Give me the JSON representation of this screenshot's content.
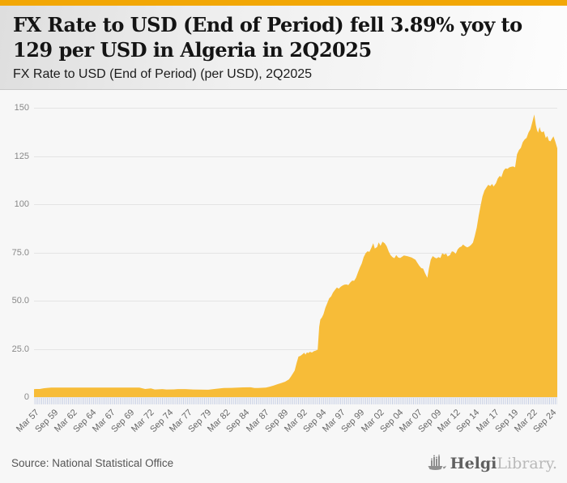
{
  "page": {
    "background": "#f7f7f7",
    "accent_bar_color": "#F2A705"
  },
  "header": {
    "title": "FX Rate to USD (End of Period) fell 3.89% yoy to 129 per USD in Algeria in 2Q2025",
    "subtitle": "FX Rate to USD (End of Period) (per USD), 2Q2025"
  },
  "chart_data": {
    "type": "area",
    "title": "FX Rate to USD (End of Period) (per USD), 2Q2025",
    "xlabel": "",
    "ylabel": "",
    "unit": "per USD",
    "latest_value": 129,
    "latest_period": "2Q2025",
    "yoy_change_pct": -3.89,
    "country": "Algeria",
    "fill_color": "#F7BC38",
    "grid_color": "#e4e4e4",
    "tick_comb_color": "#c7cfe4",
    "axis_text_color": "#777777",
    "legend": "none",
    "grid": "horizontal",
    "x_range": [
      1957.25,
      2025.5
    ],
    "y_range": [
      0,
      150
    ],
    "y_ticks": [
      {
        "v": 0,
        "label": "0"
      },
      {
        "v": 25,
        "label": "25.0"
      },
      {
        "v": 50,
        "label": "50.0"
      },
      {
        "v": 75,
        "label": "75.0"
      },
      {
        "v": 100,
        "label": "100"
      },
      {
        "v": 125,
        "label": "125"
      },
      {
        "v": 150,
        "label": "150"
      }
    ],
    "x_tick_start": 1957.25,
    "x_tick_step": 2.5,
    "x_tick_labels": [
      "Mar 57",
      "Sep 59",
      "Mar 62",
      "Sep 64",
      "Mar 67",
      "Sep 69",
      "Mar 72",
      "Sep 74",
      "Mar 77",
      "Sep 79",
      "Mar 82",
      "Sep 84",
      "Mar 87",
      "Sep 89",
      "Mar 92",
      "Sep 94",
      "Mar 97",
      "Sep 99",
      "Mar 02",
      "Sep 04",
      "Mar 07",
      "Sep 09",
      "Mar 12",
      "Sep 14",
      "Mar 17",
      "Sep 19",
      "Mar 22",
      "Sep 24"
    ],
    "minor_ticks_per_year": 4,
    "series": [
      {
        "name": "FX Rate to USD (End of Period)",
        "points": [
          [
            1957.25,
            4.1
          ],
          [
            1957.5,
            4.2
          ],
          [
            1958.0,
            4.2
          ],
          [
            1958.5,
            4.6
          ],
          [
            1959.0,
            4.8
          ],
          [
            1959.5,
            4.94
          ],
          [
            1961.0,
            4.94
          ],
          [
            1963.0,
            4.94
          ],
          [
            1965.0,
            4.94
          ],
          [
            1967.0,
            4.94
          ],
          [
            1969.0,
            4.94
          ],
          [
            1971.0,
            4.94
          ],
          [
            1971.75,
            4.19
          ],
          [
            1972.5,
            4.48
          ],
          [
            1973.0,
            3.96
          ],
          [
            1974.0,
            4.18
          ],
          [
            1974.5,
            3.95
          ],
          [
            1975.5,
            4.0
          ],
          [
            1976.0,
            4.16
          ],
          [
            1977.0,
            4.15
          ],
          [
            1978.0,
            3.97
          ],
          [
            1979.0,
            3.85
          ],
          [
            1980.0,
            3.84
          ],
          [
            1981.0,
            4.32
          ],
          [
            1982.0,
            4.7
          ],
          [
            1983.0,
            4.79
          ],
          [
            1984.5,
            5.03
          ],
          [
            1985.5,
            5.1
          ],
          [
            1986.0,
            4.7
          ],
          [
            1986.5,
            4.75
          ],
          [
            1987.0,
            4.85
          ],
          [
            1987.5,
            4.93
          ],
          [
            1988.0,
            5.4
          ],
          [
            1988.5,
            6.0
          ],
          [
            1989.0,
            6.7
          ],
          [
            1989.5,
            7.3
          ],
          [
            1990.0,
            8.0
          ],
          [
            1990.5,
            9.2
          ],
          [
            1990.75,
            10.6
          ],
          [
            1991.0,
            12.2
          ],
          [
            1991.25,
            13.8
          ],
          [
            1991.5,
            17.7
          ],
          [
            1991.75,
            21.0
          ],
          [
            1992.0,
            21.4
          ],
          [
            1992.25,
            22.2
          ],
          [
            1992.5,
            23.0
          ],
          [
            1992.65,
            22.0
          ],
          [
            1992.85,
            23.2
          ],
          [
            1993.0,
            22.8
          ],
          [
            1993.25,
            23.5
          ],
          [
            1993.5,
            23.1
          ],
          [
            1993.75,
            23.8
          ],
          [
            1994.0,
            24.1
          ],
          [
            1994.25,
            24.6
          ],
          [
            1994.45,
            36.5
          ],
          [
            1994.6,
            40.2
          ],
          [
            1994.8,
            41.3
          ],
          [
            1995.0,
            42.9
          ],
          [
            1995.25,
            46.3
          ],
          [
            1995.5,
            48.7
          ],
          [
            1995.75,
            51.2
          ],
          [
            1996.0,
            52.2
          ],
          [
            1996.25,
            54.2
          ],
          [
            1996.5,
            55.6
          ],
          [
            1996.75,
            56.8
          ],
          [
            1997.0,
            56.2
          ],
          [
            1997.25,
            57.2
          ],
          [
            1997.5,
            57.9
          ],
          [
            1997.75,
            58.3
          ],
          [
            1998.0,
            58.4
          ],
          [
            1998.25,
            58.1
          ],
          [
            1998.5,
            59.4
          ],
          [
            1998.75,
            60.4
          ],
          [
            1999.0,
            60.3
          ],
          [
            1999.25,
            61.9
          ],
          [
            1999.5,
            64.6
          ],
          [
            1999.75,
            67.2
          ],
          [
            2000.0,
            69.3
          ],
          [
            2000.25,
            72.6
          ],
          [
            2000.5,
            74.6
          ],
          [
            2000.75,
            75.6
          ],
          [
            2001.0,
            75.3
          ],
          [
            2001.25,
            77.4
          ],
          [
            2001.5,
            79.8
          ],
          [
            2001.7,
            77.0
          ],
          [
            2002.0,
            77.8
          ],
          [
            2002.2,
            80.2
          ],
          [
            2002.45,
            78.4
          ],
          [
            2002.7,
            80.6
          ],
          [
            2003.0,
            79.7
          ],
          [
            2003.25,
            78.2
          ],
          [
            2003.5,
            75.6
          ],
          [
            2003.75,
            73.6
          ],
          [
            2004.0,
            72.6
          ],
          [
            2004.25,
            72.0
          ],
          [
            2004.5,
            73.6
          ],
          [
            2004.75,
            72.4
          ],
          [
            2005.0,
            72.1
          ],
          [
            2005.5,
            73.4
          ],
          [
            2006.0,
            73.0
          ],
          [
            2006.5,
            72.4
          ],
          [
            2007.0,
            71.2
          ],
          [
            2007.25,
            69.6
          ],
          [
            2007.5,
            68.1
          ],
          [
            2007.75,
            66.9
          ],
          [
            2008.0,
            66.6
          ],
          [
            2008.25,
            64.3
          ],
          [
            2008.55,
            61.9
          ],
          [
            2008.75,
            66.6
          ],
          [
            2009.0,
            71.2
          ],
          [
            2009.25,
            73.1
          ],
          [
            2009.5,
            72.4
          ],
          [
            2009.75,
            71.9
          ],
          [
            2010.0,
            72.6
          ],
          [
            2010.25,
            72.1
          ],
          [
            2010.5,
            74.6
          ],
          [
            2010.75,
            73.9
          ],
          [
            2011.0,
            74.4
          ],
          [
            2011.2,
            72.9
          ],
          [
            2011.5,
            73.6
          ],
          [
            2011.75,
            75.6
          ],
          [
            2012.0,
            75.3
          ],
          [
            2012.25,
            74.3
          ],
          [
            2012.5,
            76.6
          ],
          [
            2012.75,
            77.6
          ],
          [
            2013.0,
            78.1
          ],
          [
            2013.2,
            79.1
          ],
          [
            2013.5,
            78.2
          ],
          [
            2013.75,
            77.6
          ],
          [
            2014.0,
            78.1
          ],
          [
            2014.25,
            78.9
          ],
          [
            2014.5,
            80.1
          ],
          [
            2014.75,
            83.6
          ],
          [
            2015.0,
            87.9
          ],
          [
            2015.25,
            94.1
          ],
          [
            2015.5,
            99.2
          ],
          [
            2015.75,
            104.1
          ],
          [
            2016.0,
            107.1
          ],
          [
            2016.25,
            108.6
          ],
          [
            2016.5,
            110.1
          ],
          [
            2016.75,
            109.4
          ],
          [
            2017.0,
            110.5
          ],
          [
            2017.2,
            109.2
          ],
          [
            2017.5,
            110.9
          ],
          [
            2017.75,
            113.4
          ],
          [
            2018.0,
            114.7
          ],
          [
            2018.2,
            114.0
          ],
          [
            2018.5,
            117.4
          ],
          [
            2018.75,
            118.6
          ],
          [
            2019.0,
            118.3
          ],
          [
            2019.25,
            119.1
          ],
          [
            2019.5,
            119.4
          ],
          [
            2019.75,
            119.6
          ],
          [
            2020.0,
            119.1
          ],
          [
            2020.25,
            125.9
          ],
          [
            2020.5,
            128.1
          ],
          [
            2020.75,
            129.2
          ],
          [
            2021.0,
            132.2
          ],
          [
            2021.25,
            133.6
          ],
          [
            2021.5,
            134.4
          ],
          [
            2021.75,
            137.2
          ],
          [
            2022.0,
            138.9
          ],
          [
            2022.25,
            142.6
          ],
          [
            2022.5,
            146.5
          ],
          [
            2022.7,
            141.0
          ],
          [
            2022.85,
            138.5
          ],
          [
            2023.0,
            137.1
          ],
          [
            2023.2,
            140.0
          ],
          [
            2023.35,
            138.0
          ],
          [
            2023.5,
            137.3
          ],
          [
            2023.75,
            137.8
          ],
          [
            2024.0,
            134.3
          ],
          [
            2024.2,
            135.4
          ],
          [
            2024.4,
            133.0
          ],
          [
            2024.6,
            132.6
          ],
          [
            2024.8,
            133.9
          ],
          [
            2025.0,
            135.2
          ],
          [
            2025.25,
            132.4
          ],
          [
            2025.5,
            129.0
          ]
        ]
      }
    ]
  },
  "footer": {
    "source": "Source: National Statistical Office",
    "logo": {
      "icon": "helgi-bars-boat-icon",
      "primary": "Helgi",
      "secondary": "Library."
    }
  }
}
